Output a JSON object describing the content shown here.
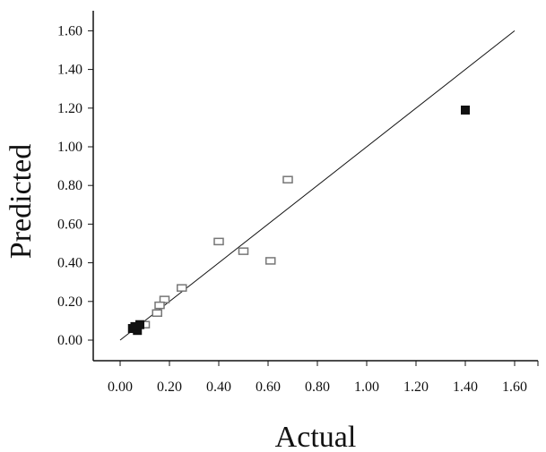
{
  "chart_data": {
    "type": "scatter",
    "title": "",
    "xlabel": "Actual",
    "ylabel": "Predicted",
    "xlim": [
      -0.1,
      1.7
    ],
    "ylim": [
      -0.1,
      1.7
    ],
    "x_ticks": [
      "0.00",
      "0.20",
      "0.40",
      "0.60",
      "0.80",
      "1.00",
      "1.20",
      "1.40",
      "1.60"
    ],
    "y_ticks": [
      "0.00",
      "0.20",
      "0.40",
      "0.60",
      "0.80",
      "1.00",
      "1.20",
      "1.40",
      "1.60"
    ],
    "grid": false,
    "reference_line": {
      "x": [
        0,
        1.6
      ],
      "y": [
        0,
        1.6
      ]
    },
    "series": [
      {
        "marker": "open-square",
        "color": "#777777",
        "points": [
          {
            "x": 0.68,
            "y": 0.83
          },
          {
            "x": 0.4,
            "y": 0.51
          },
          {
            "x": 0.5,
            "y": 0.46
          },
          {
            "x": 0.61,
            "y": 0.41
          },
          {
            "x": 0.25,
            "y": 0.27
          },
          {
            "x": 0.18,
            "y": 0.21
          },
          {
            "x": 0.16,
            "y": 0.18
          },
          {
            "x": 0.15,
            "y": 0.14
          },
          {
            "x": 0.1,
            "y": 0.08
          }
        ]
      },
      {
        "marker": "filled-square",
        "color": "#111111",
        "points": [
          {
            "x": 1.4,
            "y": 1.19
          },
          {
            "x": 0.05,
            "y": 0.06
          },
          {
            "x": 0.07,
            "y": 0.05
          },
          {
            "x": 0.08,
            "y": 0.08
          },
          {
            "x": 0.06,
            "y": 0.07
          }
        ]
      }
    ]
  }
}
